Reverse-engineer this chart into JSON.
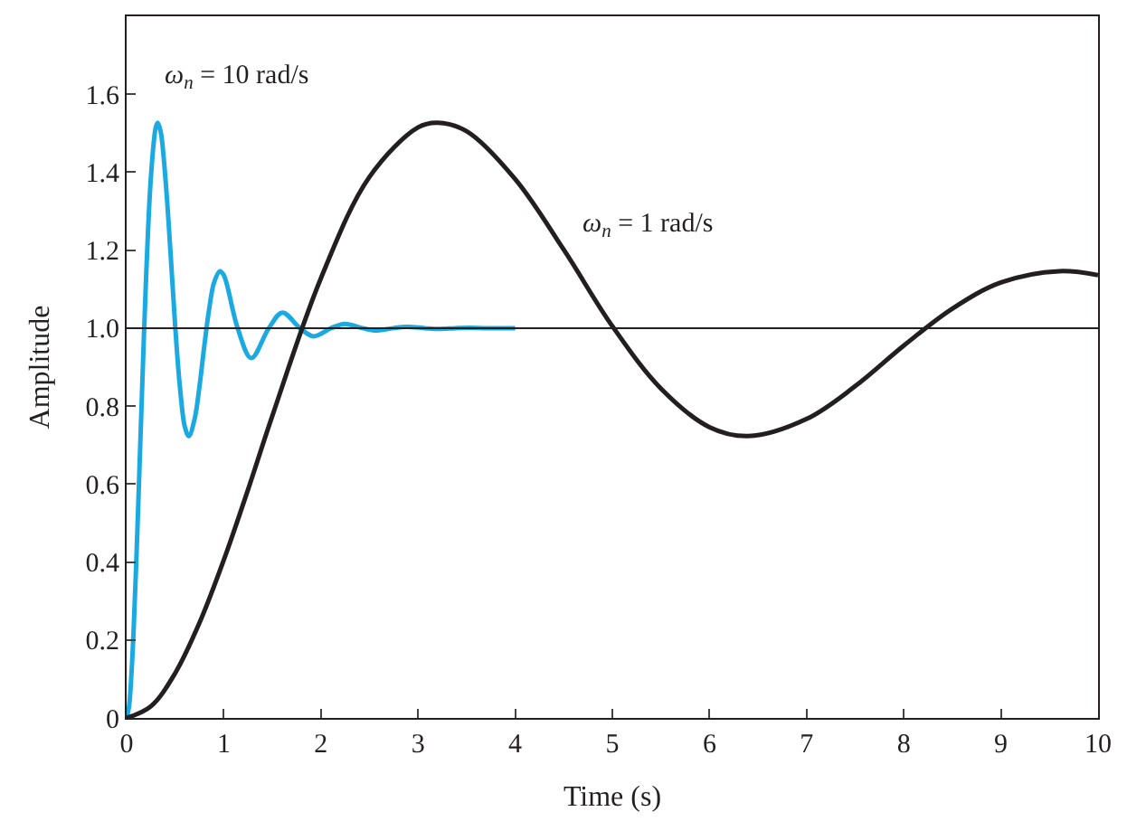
{
  "chart_data": {
    "type": "line",
    "xlabel": "Time (s)",
    "ylabel": "Amplitude",
    "xlim": [
      0,
      10
    ],
    "ylim": [
      0,
      1.8
    ],
    "xticks": [
      0,
      1,
      2,
      3,
      4,
      5,
      6,
      7,
      8,
      9,
      10
    ],
    "yticks": [
      0,
      {
        "value": 0.2,
        "label": "0.2"
      },
      {
        "value": 0.4,
        "label": "0.4"
      },
      {
        "value": 0.6,
        "label": "0.6"
      },
      {
        "value": 0.8,
        "label": "0.8"
      },
      {
        "value": 1,
        "label": "1.0"
      },
      {
        "value": 1.2,
        "label": "1.2"
      },
      {
        "value": 1.4,
        "label": "1.4"
      },
      {
        "value": 1.6,
        "label": "1.6"
      }
    ],
    "legend": false,
    "marker": "none",
    "line_style": "solid",
    "ref_lines": [
      {
        "axis": "y",
        "value": 1,
        "color": "#231f20"
      }
    ],
    "series": [
      {
        "name": "ω$_{n}$ = 10 rad/s",
        "color": "#1ba9e1",
        "x": [
          0,
          0.025,
          0.05,
          0.075,
          0.1,
          0.125,
          0.15,
          0.2,
          0.25,
          0.3,
          0.32,
          0.35,
          0.4,
          0.45,
          0.5,
          0.55,
          0.6,
          0.64,
          0.7,
          0.75,
          0.8,
          0.85,
          0.9,
          0.96,
          1.0,
          1.143,
          1.283,
          1.464,
          1.603,
          1.784,
          1.924,
          2.105,
          2.245,
          2.426,
          2.565,
          2.746,
          2.886,
          3.067,
          3.207,
          3.387,
          3.527,
          3.708,
          4.0
        ],
        "values": [
          0,
          0.03,
          0.115,
          0.244,
          0.405,
          0.586,
          0.775,
          1.128,
          1.388,
          1.515,
          1.527,
          1.505,
          1.382,
          1.201,
          1.005,
          0.845,
          0.746,
          0.723,
          0.767,
          0.851,
          0.955,
          1.05,
          1.117,
          1.146,
          1.136,
          1.0,
          0.923,
          1.0,
          1.04,
          1.0,
          0.979,
          1.0,
          1.011,
          1.0,
          0.994,
          1.0,
          1.003,
          1.0,
          0.998,
          1.0,
          1.001,
          1.0,
          1.0
        ]
      },
      {
        "name": "ω$_{n}$ = 1 rad/s",
        "color": "#231f20",
        "x": [
          0,
          0.25,
          0.5,
          0.75,
          1,
          1.25,
          1.5,
          2,
          2.5,
          3,
          3.2,
          3.5,
          4,
          4.5,
          5,
          5.5,
          6,
          6.4,
          7,
          7.5,
          8,
          8.5,
          9,
          9.6,
          10
        ],
        "values": [
          0,
          0.03,
          0.115,
          0.244,
          0.405,
          0.586,
          0.775,
          1.128,
          1.388,
          1.515,
          1.527,
          1.505,
          1.382,
          1.201,
          1.005,
          0.845,
          0.746,
          0.723,
          0.767,
          0.851,
          0.955,
          1.05,
          1.117,
          1.146,
          1.136
        ]
      }
    ]
  }
}
